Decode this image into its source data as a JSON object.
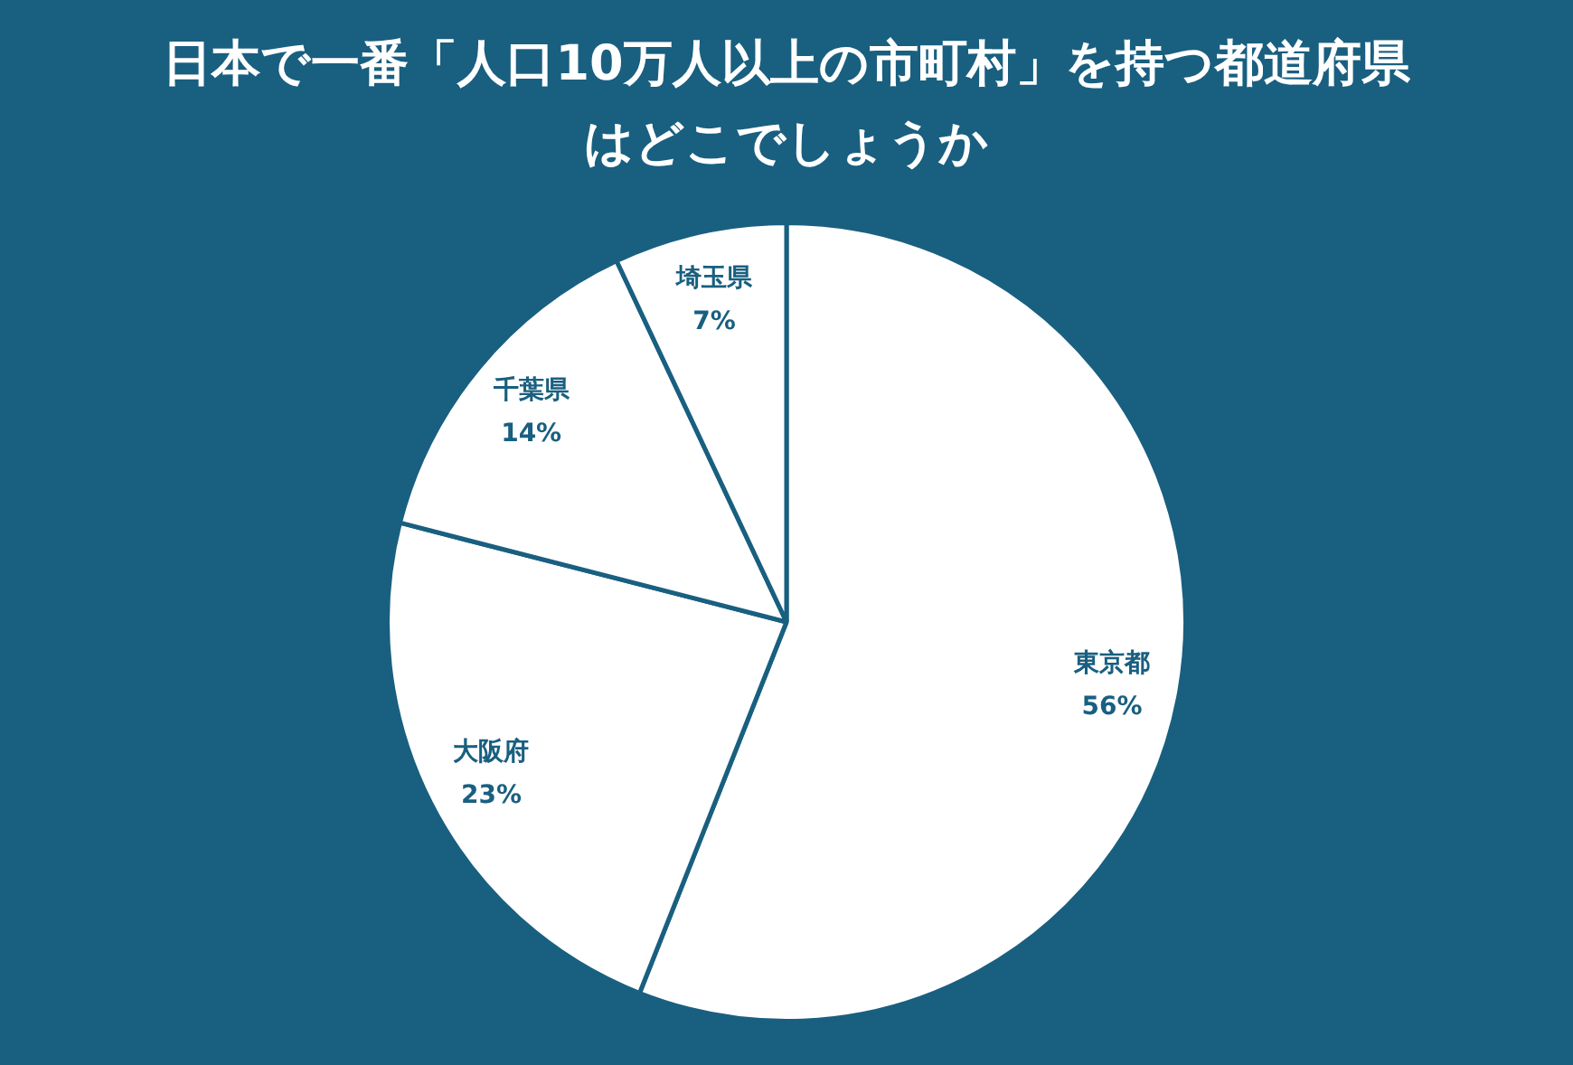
{
  "chart_data": {
    "type": "pie",
    "title": "日本で一番「人口10万人以上の市町村」を持つ都道府県はどこでしょうか",
    "categories": [
      "東京都",
      "大阪府",
      "千葉県",
      "埼玉県"
    ],
    "values": [
      56,
      23,
      14,
      7
    ],
    "value_labels": [
      "56%",
      "23%",
      "14%",
      "7%"
    ],
    "colors": [
      "#ffffff",
      "#ffffff",
      "#ffffff",
      "#ffffff"
    ],
    "legend": false
  }
}
